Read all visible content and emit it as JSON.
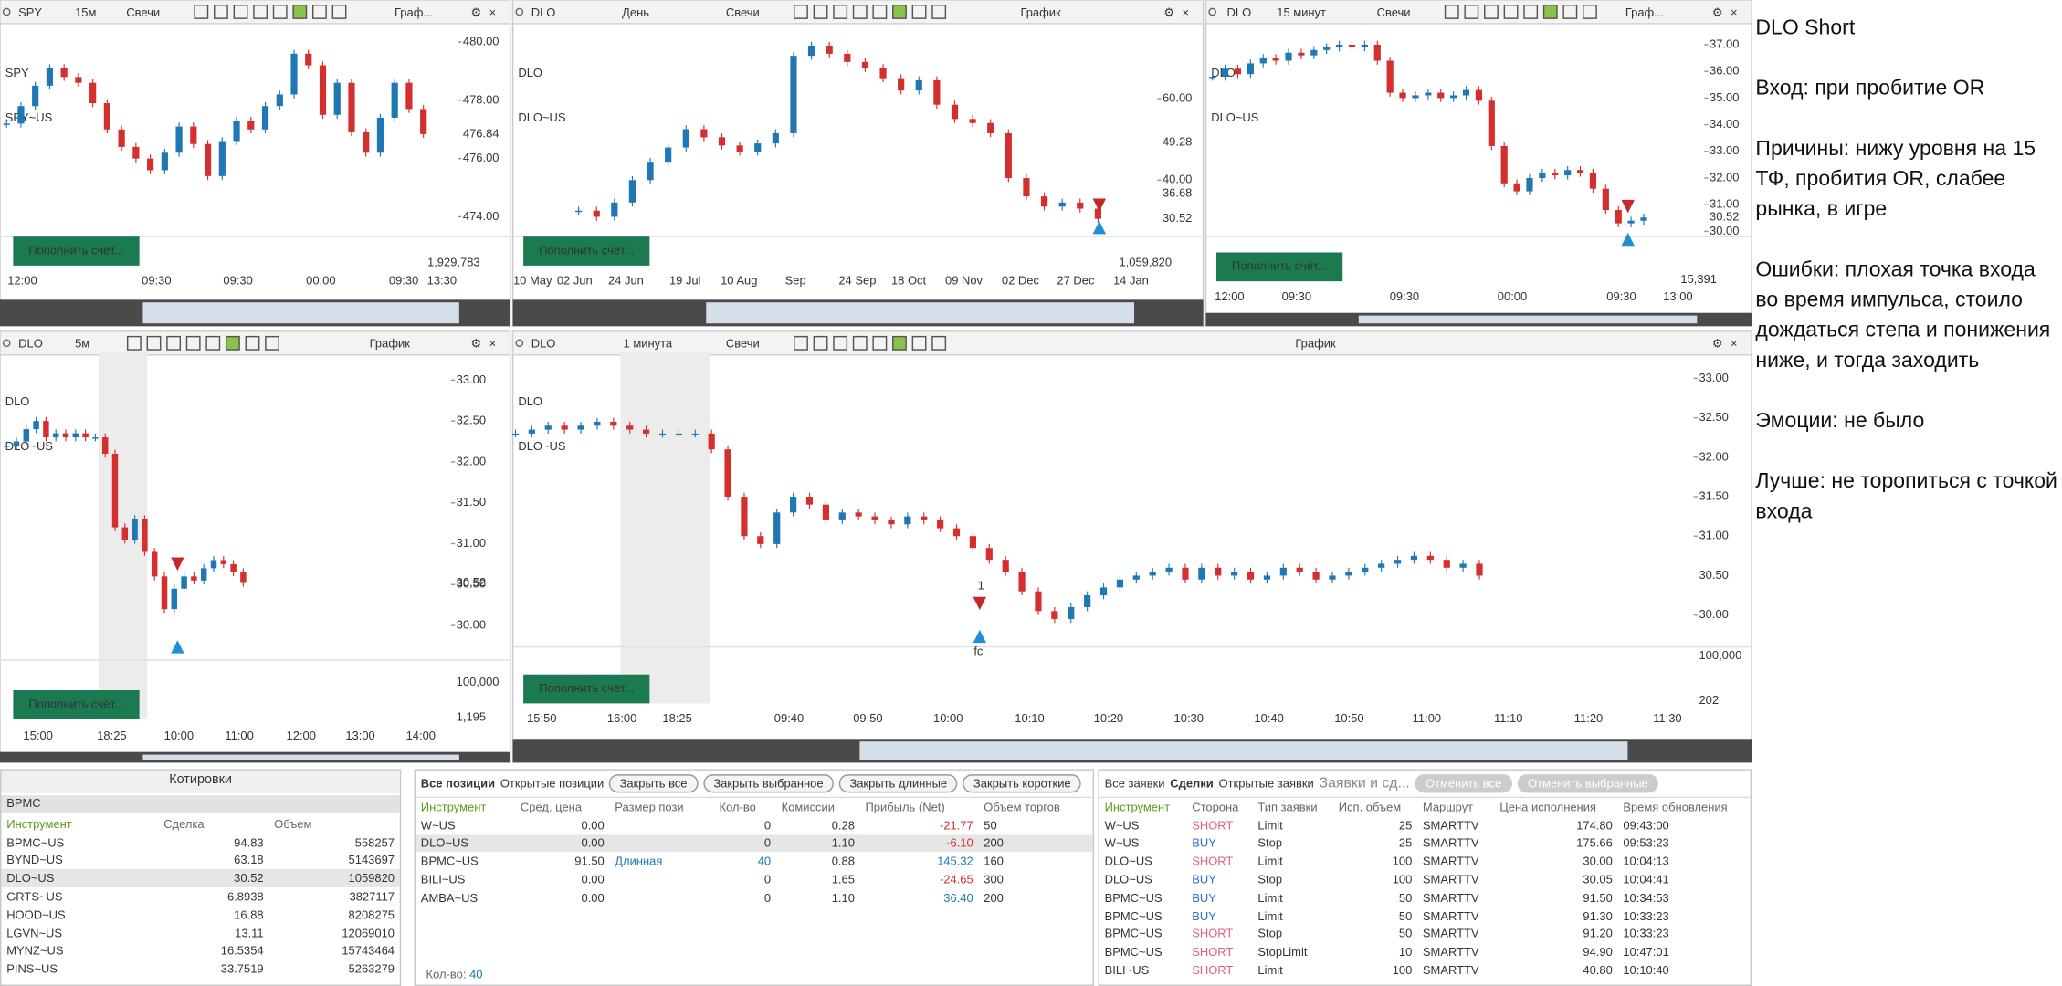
{
  "candle_colors": {
    "up": "#1f78b4",
    "down": "#d32f2f"
  },
  "charts": [
    {
      "symbol": "SPY",
      "timeframe": "15м",
      "style": "Свечи",
      "title": "Граф...",
      "watermark": "SPY",
      "watermark_sub": "SPY~US",
      "ylim": [
        473.41,
        480.63
      ],
      "yticks": [
        {
          "value": 480,
          "label": "480.00"
        },
        {
          "value": 478,
          "label": "478.00"
        },
        {
          "value": 476,
          "label": "476.00"
        },
        {
          "value": 474,
          "label": "474.00"
        }
      ],
      "price_labels": [
        {
          "value": 476.84,
          "color": "#c62828"
        }
      ],
      "xticks": [
        "12:00",
        "09:30",
        "09:30",
        "00:00",
        "09:30",
        "13:30"
      ],
      "volume_labels": [
        "1,929,783"
      ],
      "button": "Пополнить счёт...",
      "closes": [
        477.2,
        477.8,
        478.5,
        479.1,
        478.8,
        478.6,
        477.9,
        477.0,
        476.4,
        476.0,
        475.6,
        476.2,
        477.1,
        476.5,
        475.4,
        476.6,
        477.3,
        477.0,
        477.8,
        478.2,
        479.6,
        479.2,
        477.5,
        478.6,
        476.9,
        476.2,
        477.4,
        478.6,
        477.7,
        476.84
      ]
    },
    {
      "symbol": "DLO",
      "timeframe": "День",
      "style": "Свечи",
      "title": "График",
      "watermark": "DLO",
      "watermark_sub": "DLO~US",
      "ylim": [
        26.77,
        78.39
      ],
      "yticks": [
        {
          "value": 60,
          "label": "60.00"
        },
        {
          "value": 40,
          "label": "40.00"
        }
      ],
      "price_labels": [
        {
          "value": 49.28,
          "color": "#2b35c8"
        },
        {
          "value": 36.68,
          "color": "#2fc4d8"
        },
        {
          "value": 30.52,
          "color": "#c62828"
        }
      ],
      "xticks": [
        "10 May",
        "02 Jun",
        "24 Jun",
        "19 Jul",
        "10 Aug",
        "Sep",
        "24 Sep",
        "18 Oct",
        "09 Nov",
        "02 Dec",
        "27 Dec",
        "14 Jan"
      ],
      "volume_labels": [
        "1,059,820"
      ],
      "button": "Пополнить счёт...",
      "closes": [
        32.5,
        31.0,
        34.5,
        40.0,
        44.5,
        48.0,
        52.5,
        50.5,
        48.5,
        47.0,
        49.0,
        51.5,
        70.5,
        73.0,
        71.0,
        69.0,
        67.5,
        65.0,
        62.0,
        64.5,
        58.5,
        55.0,
        54.0,
        51.5,
        40.5,
        36.0,
        33.5,
        34.5,
        33.0,
        30.52
      ]
    },
    {
      "symbol": "DLO",
      "timeframe": "15 минут",
      "style": "Свечи",
      "title": "Граф...",
      "watermark": "DLO",
      "watermark_sub": "DLO~US",
      "ylim": [
        29.9,
        37.79
      ],
      "yticks": [
        {
          "value": 37,
          "label": "37.00"
        },
        {
          "value": 36,
          "label": "36.00"
        },
        {
          "value": 35,
          "label": "35.00"
        },
        {
          "value": 34,
          "label": "34.00"
        },
        {
          "value": 33,
          "label": "33.00"
        },
        {
          "value": 32,
          "label": "32.00"
        },
        {
          "value": 31,
          "label": "31.00"
        },
        {
          "value": 30,
          "label": "30.00"
        }
      ],
      "price_labels": [
        {
          "value": 30.52,
          "color": "#c62828"
        }
      ],
      "xticks": [
        "12:00",
        "09:30",
        "09:30",
        "00:00",
        "09:30",
        "13:00"
      ],
      "volume_labels": [
        "15,391"
      ],
      "button": "Пополнить счёт...",
      "closes": [
        35.8,
        36.1,
        35.9,
        36.3,
        36.5,
        36.4,
        36.7,
        36.6,
        36.8,
        36.9,
        37.0,
        36.9,
        37.0,
        36.4,
        35.2,
        35.0,
        35.1,
        35.2,
        35.0,
        35.1,
        35.3,
        34.9,
        33.2,
        31.8,
        31.5,
        32.0,
        32.2,
        32.1,
        32.3,
        32.2,
        31.6,
        30.8,
        30.3,
        30.4,
        30.52
      ]
    },
    {
      "symbol": "DLO",
      "timeframe": "5м",
      "title": "График",
      "watermark": "DLO",
      "watermark_sub": "DLO~US",
      "ylim": [
        29.61,
        33.34
      ],
      "yticks": [
        {
          "value": 33,
          "label": "33.00"
        },
        {
          "value": 32.5,
          "label": "32.50"
        },
        {
          "value": 32,
          "label": "32.00"
        },
        {
          "value": 31.5,
          "label": "31.50"
        },
        {
          "value": 31,
          "label": "31.00"
        },
        {
          "value": 30.5,
          "label": "30.50"
        },
        {
          "value": 30,
          "label": "30.00"
        }
      ],
      "price_labels": [
        {
          "value": 30.52,
          "color": "#c62828"
        }
      ],
      "xticks": [
        "15:00",
        "18:25",
        "10:00",
        "11:00",
        "12:00",
        "13:00",
        "14:00"
      ],
      "volume_labels": [
        "100,000",
        "1,195"
      ],
      "button": "Пополнить счёт...",
      "closes": [
        32.2,
        32.25,
        32.4,
        32.5,
        32.3,
        32.35,
        32.3,
        32.35,
        32.3,
        32.3,
        32.1,
        31.2,
        31.05,
        31.3,
        30.9,
        30.6,
        30.2,
        30.45,
        30.6,
        30.55,
        30.7,
        30.8,
        30.75,
        30.65,
        30.52
      ]
    },
    {
      "symbol": "DLO",
      "timeframe": "1 минута",
      "style": "Свечи",
      "title": "График",
      "watermark": "DLO",
      "watermark_sub": "DLO~US",
      "ylim": [
        29.63,
        33.33
      ],
      "yticks": [
        {
          "value": 33,
          "label": "33.00"
        },
        {
          "value": 32.5,
          "label": "32.50"
        },
        {
          "value": 32,
          "label": "32.00"
        },
        {
          "value": 31.5,
          "label": "31.50"
        },
        {
          "value": 31,
          "label": "31.00"
        },
        {
          "value": 30,
          "label": "30.00"
        }
      ],
      "price_labels": [
        {
          "value": 30.5,
          "label": "30.50",
          "color": "#1f78b4"
        }
      ],
      "xticks": [
        "15:50",
        "16:00",
        "18:25",
        "09:40",
        "09:50",
        "10:00",
        "10:10",
        "10:20",
        "10:30",
        "10:40",
        "10:50",
        "11:00",
        "11:10",
        "11:20",
        "11:30"
      ],
      "volume_labels": [
        "100,000",
        "202"
      ],
      "button": "Пополнить счёт...",
      "annotations": [
        "1",
        "fc"
      ],
      "closes": [
        32.3,
        32.35,
        32.4,
        32.35,
        32.4,
        32.45,
        32.4,
        32.35,
        32.3,
        32.3,
        32.3,
        32.3,
        32.1,
        31.5,
        31.0,
        30.9,
        31.3,
        31.5,
        31.4,
        31.2,
        31.3,
        31.25,
        31.2,
        31.15,
        31.25,
        31.2,
        31.1,
        31.0,
        30.85,
        30.7,
        30.55,
        30.3,
        30.05,
        29.95,
        30.1,
        30.25,
        30.35,
        30.45,
        30.5,
        30.55,
        30.6,
        30.45,
        30.6,
        30.5,
        30.55,
        30.45,
        30.5,
        30.6,
        30.55,
        30.45,
        30.5,
        30.55,
        30.6,
        30.65,
        30.7,
        30.75,
        30.7,
        30.6,
        30.65,
        30.5
      ]
    }
  ],
  "quotes": {
    "title": "Котировки",
    "search": "BPMC",
    "columns": [
      "Инструмент",
      "Сделка",
      "Объем"
    ],
    "rows": [
      [
        "BPMC~US",
        "94.83",
        "558257"
      ],
      [
        "BYND~US",
        "63.18",
        "5143697"
      ],
      [
        "DLO~US",
        "30.52",
        "1059820"
      ],
      [
        "GRTS~US",
        "6.8938",
        "3827117"
      ],
      [
        "HOOD~US",
        "16.88",
        "8208275"
      ],
      [
        "LGVN~US",
        "13.11",
        "12069010"
      ],
      [
        "MYNZ~US",
        "16.5354",
        "15743464"
      ],
      [
        "PINS~US",
        "33.7519",
        "5263279"
      ]
    ]
  },
  "positions": {
    "tabs": [
      "Все позиции",
      "Открытые позиции"
    ],
    "buttons": [
      "Закрыть все",
      "Закрыть выбранное",
      "Закрыть длинные",
      "Закрыть короткие"
    ],
    "columns": [
      "Инструмент",
      "Сред. цена",
      "Размер пози",
      "Кол-во",
      "Комиссии",
      "Прибыль (Net)",
      "Объем торгов"
    ],
    "rows": [
      [
        "W~US",
        "0.00",
        null,
        "0",
        "0.28",
        "-21.77",
        "50"
      ],
      [
        "DLO~US",
        "0.00",
        null,
        "0",
        "1.10",
        "-6.10",
        "200"
      ],
      [
        "BPMC~US",
        "91.50",
        "Длинная",
        "40",
        "0.88",
        "145.32",
        "160"
      ],
      [
        "BILI~US",
        "0.00",
        null,
        "0",
        "1.65",
        "-24.65",
        "300"
      ],
      [
        "AMBA~US",
        "0.00",
        null,
        "0",
        "1.10",
        "36.40",
        "200"
      ]
    ],
    "footer_label": "Кол-во:",
    "footer_value": "40"
  },
  "orders": {
    "tabs": [
      "Все заявки",
      "Сделки",
      "Открытые заявки",
      "Заявки и сд..."
    ],
    "buttons": [
      "Отменить все",
      "Отменить выбранные"
    ],
    "columns": [
      "Инструмент",
      "Сторона",
      "Тип заявки",
      "Исп. объем",
      "Маршрут",
      "Цена исполнения",
      "Время обновления"
    ],
    "rows": [
      [
        "W~US",
        "SHORT",
        "Limit",
        "25",
        "SMARTTV",
        "174.80",
        "09:43:00"
      ],
      [
        "W~US",
        "BUY",
        "Stop",
        "25",
        "SMARTTV",
        "175.66",
        "09:53:23"
      ],
      [
        "DLO~US",
        "SHORT",
        "Limit",
        "100",
        "SMARTTV",
        "30.00",
        "10:04:13"
      ],
      [
        "DLO~US",
        "BUY",
        "Stop",
        "100",
        "SMARTTV",
        "30.05",
        "10:04:41"
      ],
      [
        "BPMC~US",
        "BUY",
        "Limit",
        "50",
        "SMARTTV",
        "91.50",
        "10:34:53"
      ],
      [
        "BPMC~US",
        "BUY",
        "Limit",
        "50",
        "SMARTTV",
        "91.30",
        "10:33:23"
      ],
      [
        "BPMC~US",
        "SHORT",
        "Stop",
        "50",
        "SMARTTV",
        "91.20",
        "10:33:23"
      ],
      [
        "BPMC~US",
        "SHORT",
        "StopLimit",
        "10",
        "SMARTTV",
        "94.90",
        "10:47:01"
      ],
      [
        "BILI~US",
        "SHORT",
        "Limit",
        "100",
        "SMARTTV",
        "40.80",
        "10:10:40"
      ]
    ]
  },
  "notes": {
    "title": "DLO Short",
    "paragraphs": [
      "Вход: при пробитие OR",
      "Причины: нижу уровня на 15 ТФ, пробития OR, слабее рынка, в игре",
      "Ошибки: плохая точка входа во время импульса, стоило дождаться степа и понижения ниже, и тогда заходить",
      "Эмоции: не было",
      "Лучше: не торопиться с точкой входа"
    ]
  }
}
